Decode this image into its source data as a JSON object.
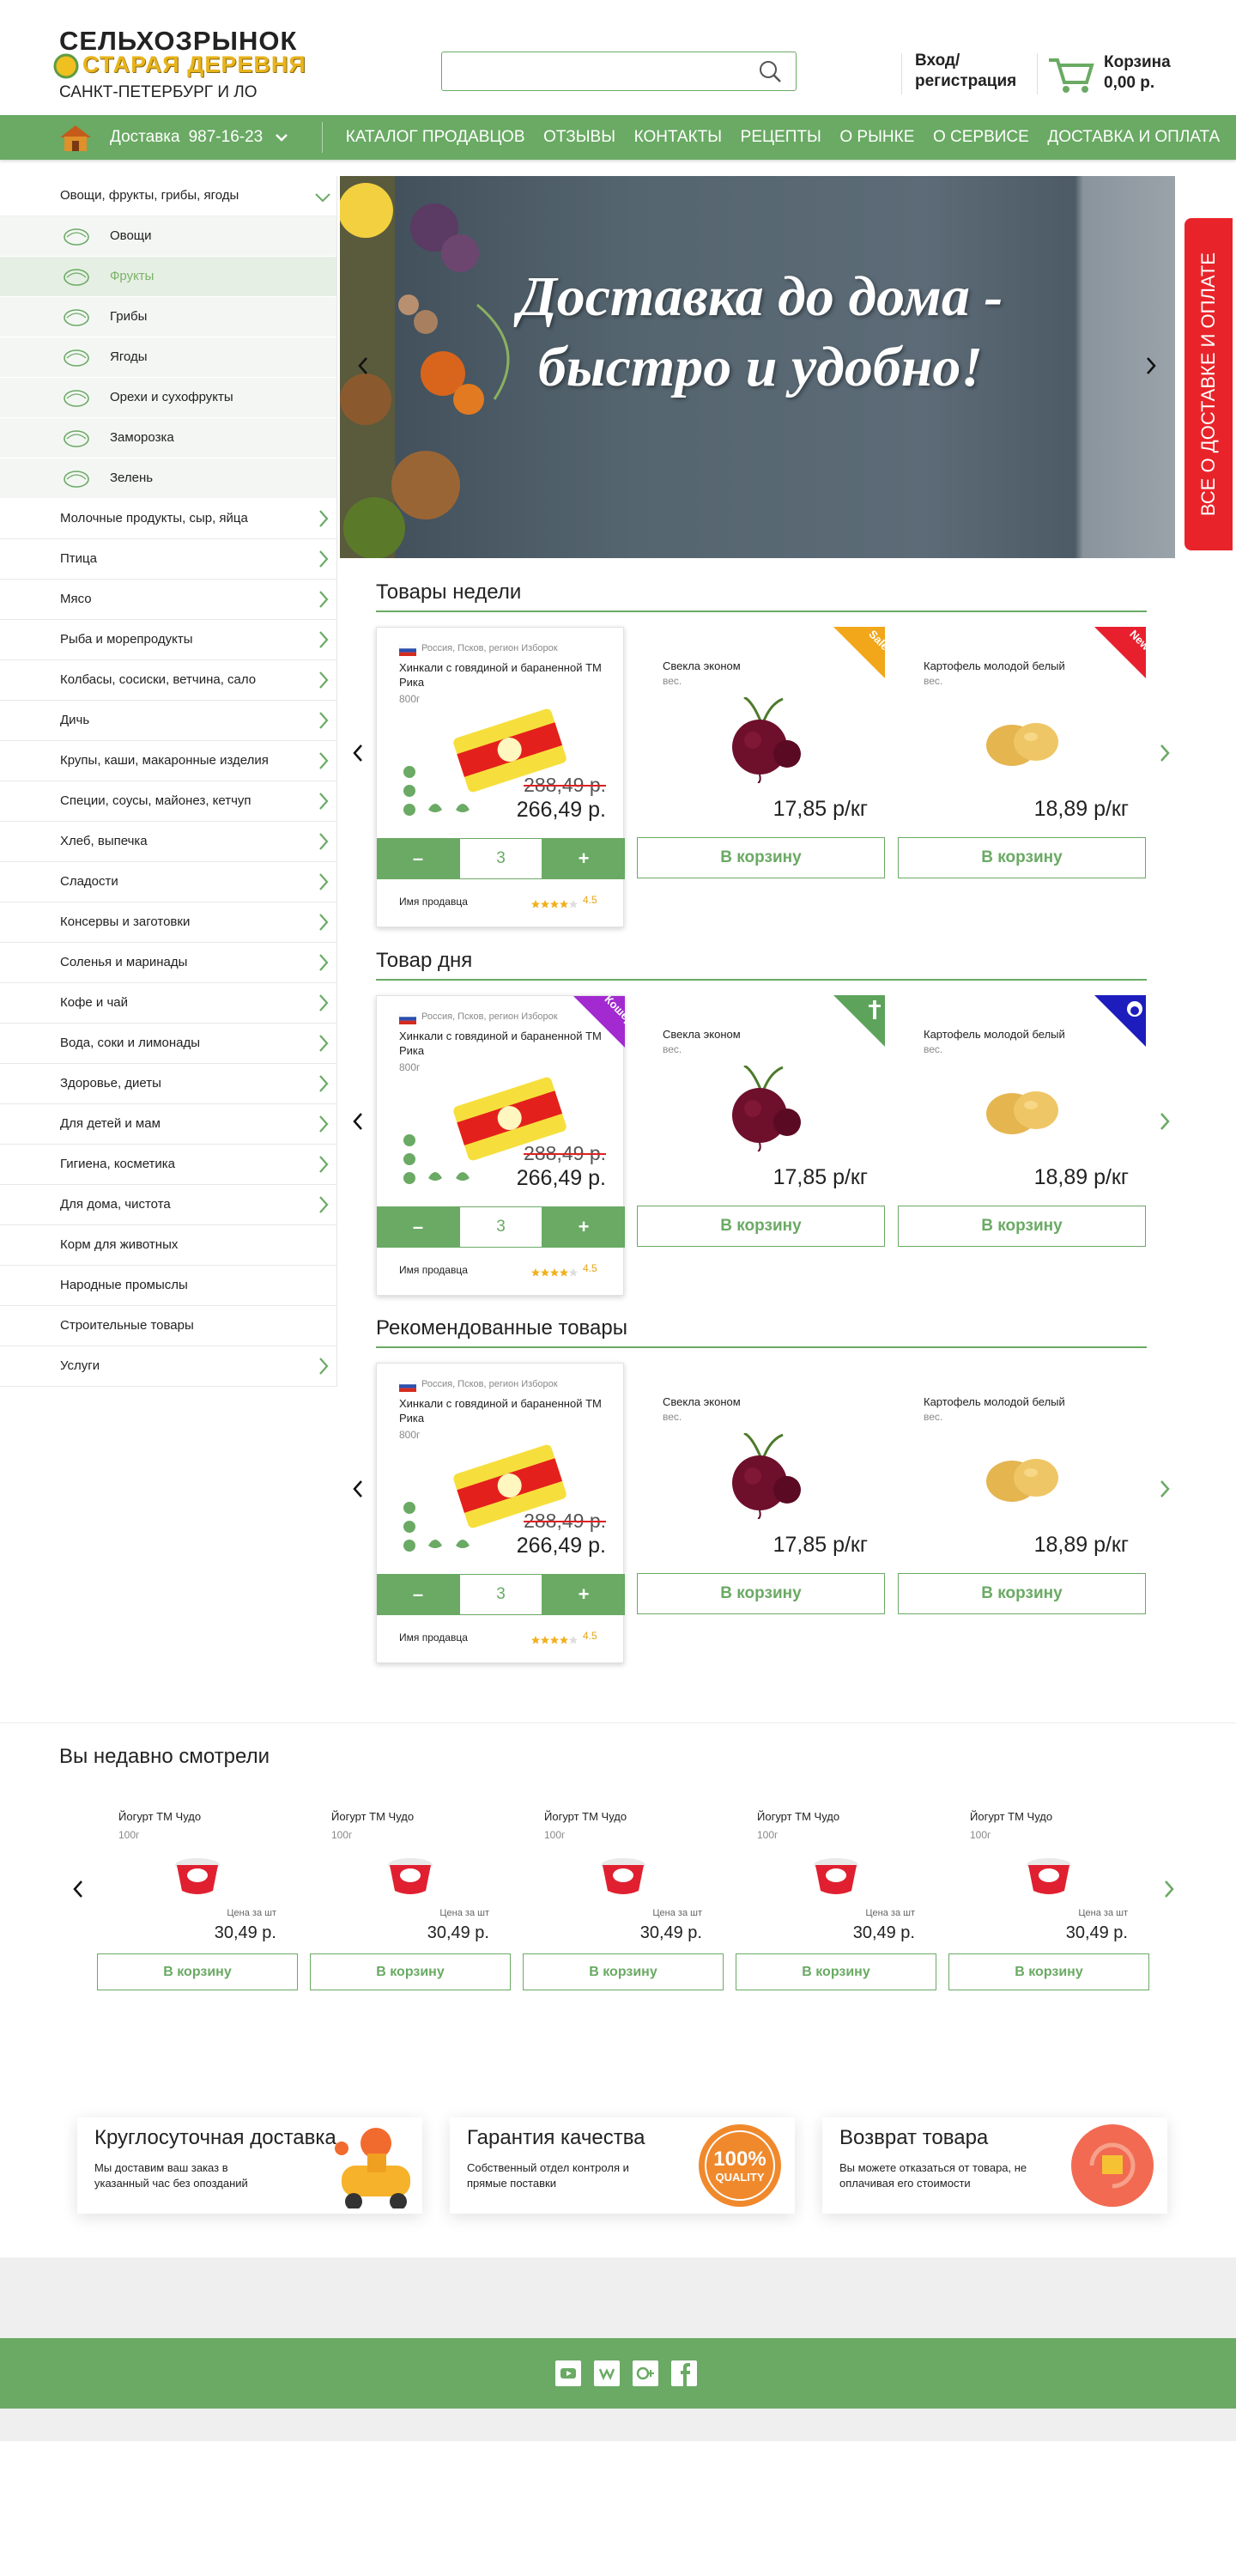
{
  "header": {
    "logo_title": "СЕЛЬХОЗРЫНОК",
    "logo_subtitle": "СТАРАЯ ДЕРЕВНЯ",
    "region": "САНКТ-ПЕТЕРБУРГ И ЛО",
    "login": "Вход/",
    "register": "регистрация",
    "cart_label": "Корзина",
    "cart_total": "0,00 р."
  },
  "nav": {
    "delivery_label": "Доставка",
    "phone": "987-16-23",
    "links": [
      "КАТАЛОГ ПРОДАВЦОВ",
      "ОТЗЫВЫ",
      "КОНТАКТЫ",
      "РЕЦЕПТЫ",
      "О РЫНКЕ",
      "О СЕРВИСЕ",
      "ДОСТАВКА И ОПЛАТА"
    ]
  },
  "sidebar": {
    "open_category": "Овощи, фрукты, грибы, ягоды",
    "subcategories": [
      "Овощи",
      "Фрукты",
      "Грибы",
      "Ягоды",
      "Орехи и сухофрукты",
      "Заморозка",
      "Зелень"
    ],
    "active_subcategory": 1,
    "categories": [
      {
        "label": "Молочные продукты, сыр, яйца",
        "expandable": true
      },
      {
        "label": "Птица",
        "expandable": true
      },
      {
        "label": "Мясо",
        "expandable": true
      },
      {
        "label": "Рыба и морепродукты",
        "expandable": true
      },
      {
        "label": "Колбасы, сосиски, ветчина, сало",
        "expandable": true
      },
      {
        "label": "Дичь",
        "expandable": true
      },
      {
        "label": "Крупы, каши, макаронные изделия",
        "expandable": true
      },
      {
        "label": "Специи, соусы, майонез, кетчуп",
        "expandable": true
      },
      {
        "label": "Хлеб, выпечка",
        "expandable": true
      },
      {
        "label": "Сладости",
        "expandable": true
      },
      {
        "label": "Консервы и заготовки",
        "expandable": true
      },
      {
        "label": "Соленья и маринады",
        "expandable": true
      },
      {
        "label": "Кофе и чай",
        "expandable": true
      },
      {
        "label": "Вода, соки и лимонады",
        "expandable": true
      },
      {
        "label": "Здоровье, диеты",
        "expandable": true
      },
      {
        "label": "Для детей и мам",
        "expandable": true
      },
      {
        "label": "Гигиена, косметика",
        "expandable": true
      },
      {
        "label": "Для дома, чистота",
        "expandable": true
      },
      {
        "label": "Корм для животных",
        "expandable": false
      },
      {
        "label": "Народные промыслы",
        "expandable": false
      },
      {
        "label": "Строительные товары",
        "expandable": false
      },
      {
        "label": "Услуги",
        "expandable": true
      }
    ]
  },
  "banner": {
    "headline_lines": [
      "Доставка до дома -",
      "быстро и удобно!"
    ]
  },
  "side_tab": "ВСЕ О ДОСТАВКЕ И ОПЛАТЕ",
  "controls": {
    "minus": "–",
    "plus": "+",
    "add_to_cart": "В корзину"
  },
  "sections": [
    {
      "title": "Товары недели",
      "featured": {
        "origin": "Россия, Псков, регион Изборок",
        "name": "Хинкали с говядиной и бараненной ТМ Рика",
        "weight": "800г",
        "old_price": "288,49 р.",
        "price": "266,49 р.",
        "quantity": "3",
        "seller": "Имя продавца",
        "rating": "4.5"
      },
      "products": [
        {
          "name": "Свекла эконом",
          "unit": "вес.",
          "price": "17,85 р/кг",
          "image": "beet",
          "badge": "Sale",
          "badge_color": "#f2a61a"
        },
        {
          "name": "Картофель молодой белый",
          "unit": "вес.",
          "price": "18,89 р/кг",
          "image": "potato",
          "badge": "New",
          "badge_color": "#e8202e"
        }
      ]
    },
    {
      "title": "Товар дня",
      "featured": {
        "origin": "Россия, Псков, регион Изборок",
        "name": "Хинкали с говядиной и бараненной ТМ Рика",
        "weight": "800г",
        "old_price": "288,49 р.",
        "price": "266,49 р.",
        "quantity": "3",
        "seller": "Имя продавца",
        "rating": "4.5",
        "badge": "Кошер",
        "badge_color": "#a22ad0"
      },
      "products": [
        {
          "name": "Свекла эконом",
          "unit": "вес.",
          "price": "17,85 р/кг",
          "image": "beet",
          "badge_icon": "cross",
          "badge_color": "#5ea35c"
        },
        {
          "name": "Картофель молодой белый",
          "unit": "вес.",
          "price": "18,89 р/кг",
          "image": "potato",
          "badge_icon": "face",
          "badge_color": "#1d1dbd"
        }
      ]
    },
    {
      "title": "Рекомендованные товары",
      "featured": {
        "origin": "Россия, Псков, регион Изборок",
        "name": "Хинкали с говядиной и бараненной ТМ Рика",
        "weight": "800г",
        "old_price": "288,49 р.",
        "price": "266,49 р.",
        "quantity": "3",
        "seller": "Имя продавца",
        "rating": "4.5"
      },
      "products": [
        {
          "name": "Свекла эконом",
          "unit": "вес.",
          "price": "17,85 р/кг",
          "image": "beet"
        },
        {
          "name": "Картофель молодой белый",
          "unit": "вес.",
          "price": "18,89 р/кг",
          "image": "potato"
        }
      ]
    }
  ],
  "recent": {
    "title": "Вы недавно смотрели",
    "items": [
      {
        "name": "Йогурт ТМ Чудо",
        "weight": "100г",
        "price_label": "Цена за шт",
        "price": "30,49 р."
      },
      {
        "name": "Йогурт ТМ Чудо",
        "weight": "100г",
        "price_label": "Цена за шт",
        "price": "30,49 р."
      },
      {
        "name": "Йогурт ТМ Чудо",
        "weight": "100г",
        "price_label": "Цена за шт",
        "price": "30,49 р."
      },
      {
        "name": "Йогурт ТМ Чудо",
        "weight": "100г",
        "price_label": "Цена за шт",
        "price": "30,49 р."
      },
      {
        "name": "Йогурт ТМ Чудо",
        "weight": "100г",
        "price_label": "Цена за шт",
        "price": "30,49 р."
      }
    ]
  },
  "features": [
    {
      "title": "Круглосуточная доставка",
      "text": "Мы доставим ваш заказ в указанный час без опозданий",
      "icon": "scooter"
    },
    {
      "title": "Гарантия качества",
      "text": "Собственный отдел контроля и прямые поставки",
      "icon": "quality",
      "badge_lines": [
        "100%",
        "QUALITY"
      ]
    },
    {
      "title": "Возврат товара",
      "text": "Вы можете отказаться от товара, не оплачивая его стоимости",
      "icon": "return"
    }
  ]
}
